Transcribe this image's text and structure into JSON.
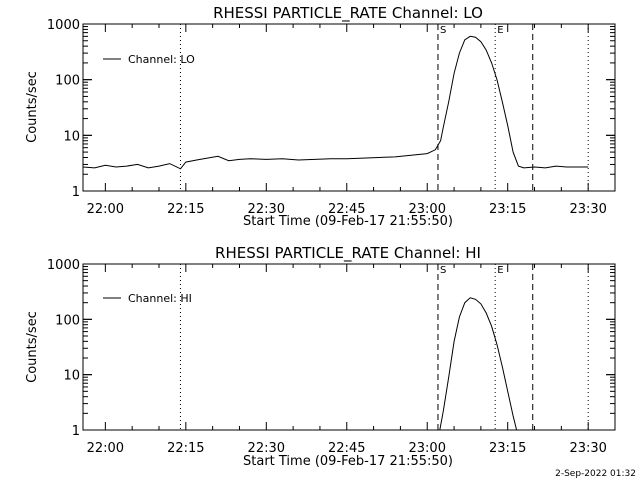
{
  "footer_timestamp": "2-Sep-2022 01:32",
  "colors": {
    "background": "#ffffff",
    "foreground": "#000000"
  },
  "chart_data": [
    {
      "type": "line",
      "title": "RHESSI PARTICLE_RATE Channel: LO",
      "xlabel": "Start Time (09-Feb-17 21:55:50)",
      "ylabel": "Counts/sec",
      "yscale": "log",
      "ylim": [
        1,
        1000
      ],
      "xlim": [
        "21:55:50",
        "23:35:00"
      ],
      "x_ticks": [
        "22:00",
        "22:15",
        "22:30",
        "22:45",
        "23:00",
        "23:15",
        "23:30"
      ],
      "y_ticks": [
        "1",
        "10",
        "100",
        "1000"
      ],
      "legend": {
        "position": "top-left",
        "entries": [
          "Channel: LO"
        ]
      },
      "markers": [
        {
          "time": "22:14:00",
          "style": "dotted",
          "label": ""
        },
        {
          "time": "23:02:00",
          "style": "dashed",
          "label": "S"
        },
        {
          "time": "23:12:40",
          "style": "dotted",
          "label": "E"
        },
        {
          "time": "23:19:40",
          "style": "dashed",
          "label": ""
        },
        {
          "time": "23:30:00",
          "style": "dotted",
          "label": ""
        }
      ],
      "series": [
        {
          "name": "Channel: LO",
          "x": [
            "21:55:50",
            "21:58:00",
            "22:00:00",
            "22:02:00",
            "22:04:00",
            "22:06:00",
            "22:08:00",
            "22:10:00",
            "22:12:00",
            "22:14:00",
            "22:15:00",
            "22:17:00",
            "22:19:00",
            "22:21:00",
            "22:23:00",
            "22:25:00",
            "22:27:00",
            "22:30:00",
            "22:33:00",
            "22:36:00",
            "22:39:00",
            "22:42:00",
            "22:45:00",
            "22:48:00",
            "22:51:00",
            "22:54:00",
            "22:57:00",
            "23:00:00",
            "23:01:30",
            "23:02:30",
            "23:03:00",
            "23:04:00",
            "23:05:00",
            "23:06:00",
            "23:07:00",
            "23:08:00",
            "23:09:00",
            "23:10:00",
            "23:11:00",
            "23:12:00",
            "23:13:00",
            "23:14:00",
            "23:15:00",
            "23:16:00",
            "23:17:00",
            "23:18:00",
            "23:20:00",
            "23:22:00",
            "23:24:00",
            "23:26:00",
            "23:28:00",
            "23:30:00"
          ],
          "y": [
            2.7,
            2.6,
            2.9,
            2.7,
            2.8,
            3.0,
            2.6,
            2.8,
            3.1,
            2.5,
            3.3,
            3.6,
            3.9,
            4.2,
            3.5,
            3.7,
            3.8,
            3.7,
            3.8,
            3.6,
            3.7,
            3.8,
            3.8,
            3.9,
            4.0,
            4.1,
            4.4,
            4.7,
            5.5,
            8,
            14,
            40,
            130,
            300,
            520,
            600,
            580,
            480,
            340,
            200,
            100,
            40,
            15,
            5,
            2.8,
            2.6,
            2.7,
            2.6,
            2.8,
            2.7,
            2.7,
            2.7
          ]
        }
      ]
    },
    {
      "type": "line",
      "title": "RHESSI PARTICLE_RATE Channel: HI",
      "xlabel": "Start Time (09-Feb-17 21:55:50)",
      "ylabel": "Counts/sec",
      "yscale": "log",
      "ylim": [
        1,
        1000
      ],
      "xlim": [
        "21:55:50",
        "23:35:00"
      ],
      "x_ticks": [
        "22:00",
        "22:15",
        "22:30",
        "22:45",
        "23:00",
        "23:15",
        "23:30"
      ],
      "y_ticks": [
        "1",
        "10",
        "100",
        "1000"
      ],
      "legend": {
        "position": "top-left",
        "entries": [
          "Channel: HI"
        ]
      },
      "markers": [
        {
          "time": "22:14:00",
          "style": "dotted",
          "label": ""
        },
        {
          "time": "23:02:00",
          "style": "dashed",
          "label": "S"
        },
        {
          "time": "23:12:40",
          "style": "dotted",
          "label": "E"
        },
        {
          "time": "23:19:40",
          "style": "dashed",
          "label": ""
        },
        {
          "time": "23:30:00",
          "style": "dotted",
          "label": ""
        }
      ],
      "series": [
        {
          "name": "Channel: HI",
          "x": [
            "23:02:20",
            "23:03:00",
            "23:04:00",
            "23:05:00",
            "23:06:00",
            "23:07:00",
            "23:08:00",
            "23:09:00",
            "23:10:00",
            "23:11:00",
            "23:12:00",
            "23:13:00",
            "23:14:00",
            "23:15:00",
            "23:16:00",
            "23:16:40"
          ],
          "y": [
            1,
            2.2,
            9,
            40,
            110,
            200,
            245,
            230,
            190,
            130,
            75,
            35,
            14,
            5,
            1.8,
            1
          ]
        }
      ]
    }
  ]
}
